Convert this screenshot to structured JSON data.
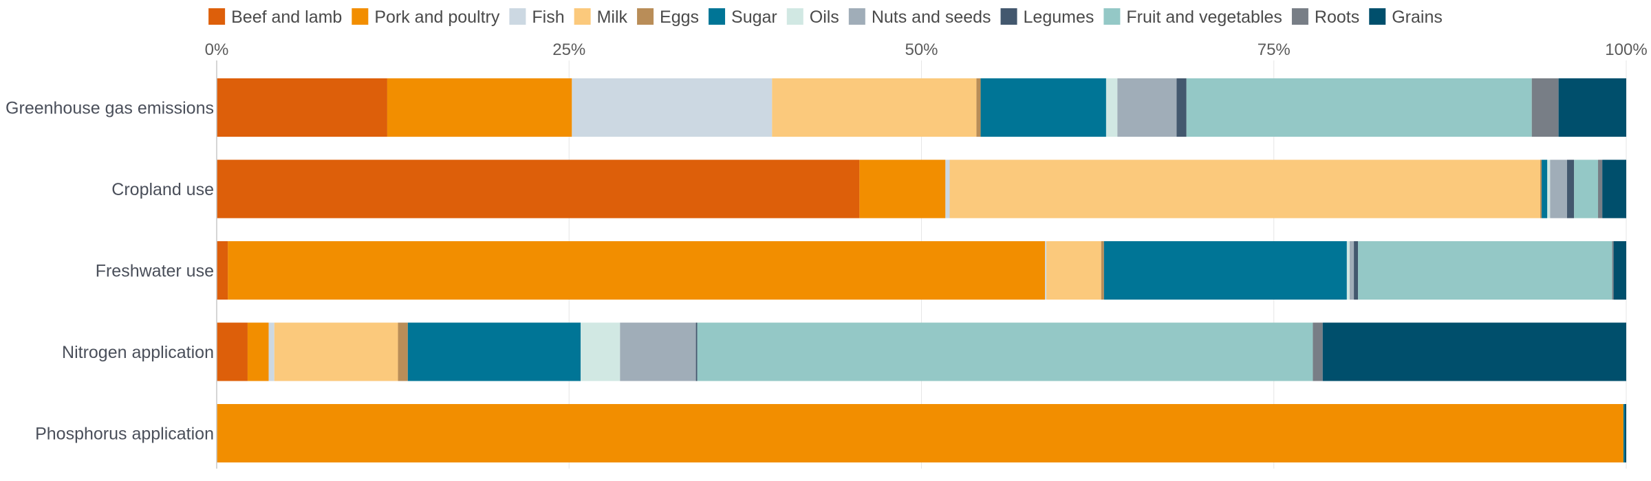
{
  "chart_data": {
    "type": "bar",
    "orientation": "horizontal",
    "stacked": true,
    "normalized": true,
    "xlim": [
      0,
      100
    ],
    "ticks": [
      "0%",
      "25%",
      "50%",
      "75%",
      "100%"
    ],
    "tick_values": [
      0,
      25,
      50,
      75,
      100
    ],
    "grid": true,
    "legend_position": "top",
    "categories": [
      "Greenhouse gas emissions",
      "Cropland use",
      "Freshwater use",
      "Nitrogen application",
      "Phosphorus application"
    ],
    "series": [
      {
        "name": "Beef and lamb",
        "color": "#dd5f0a",
        "values": [
          12.1,
          45.6,
          0.8,
          2.2,
          0.0
        ]
      },
      {
        "name": "Pork and poultry",
        "color": "#f28e00",
        "values": [
          13.1,
          6.1,
          58.2,
          1.5,
          99.8
        ]
      },
      {
        "name": "Fish",
        "color": "#ccd8e2",
        "values": [
          14.2,
          0.3,
          0.1,
          0.4,
          0.0
        ]
      },
      {
        "name": "Milk",
        "color": "#fbc97c",
        "values": [
          14.5,
          41.9,
          3.9,
          8.8,
          0.0
        ]
      },
      {
        "name": "Eggs",
        "color": "#b98d58",
        "values": [
          0.3,
          0.1,
          0.2,
          0.7,
          0.0
        ]
      },
      {
        "name": "Sugar",
        "color": "#007596",
        "values": [
          8.9,
          0.4,
          17.3,
          12.3,
          0.1
        ]
      },
      {
        "name": "Oils",
        "color": "#d1e8e3",
        "values": [
          0.8,
          0.2,
          0.2,
          2.8,
          0.0
        ]
      },
      {
        "name": "Nuts and seeds",
        "color": "#a0adb8",
        "values": [
          4.2,
          1.2,
          0.3,
          5.4,
          0.0
        ]
      },
      {
        "name": "Legumes",
        "color": "#43586e",
        "values": [
          0.7,
          0.5,
          0.3,
          0.1,
          0.0
        ]
      },
      {
        "name": "Fruit and vegetables",
        "color": "#94c8c6",
        "values": [
          24.5,
          1.7,
          18.1,
          43.8,
          0.0
        ]
      },
      {
        "name": "Roots",
        "color": "#787e86",
        "values": [
          1.9,
          0.3,
          0.1,
          0.7,
          0.0
        ]
      },
      {
        "name": "Grains",
        "color": "#004f6c",
        "values": [
          4.8,
          1.7,
          0.9,
          21.6,
          0.1
        ]
      }
    ]
  }
}
